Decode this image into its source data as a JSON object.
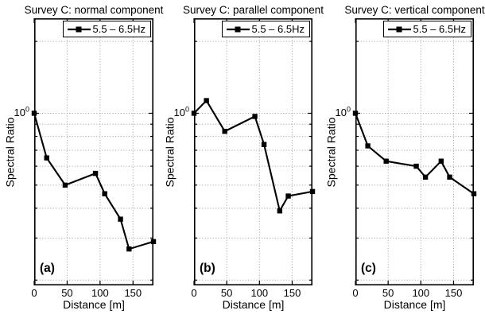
{
  "figure": {
    "background": "#ffffff",
    "line_color": "#000000",
    "grid_color": "#9a9a9a",
    "marker": "filled-square"
  },
  "chart_data": [
    {
      "type": "line",
      "title": "Survey C: normal component",
      "panel_letter": "(a)",
      "xlabel": "Distance [m]",
      "ylabel": "Spectral Ratio",
      "legend": {
        "label": "5.5 – 6.5Hz",
        "marker": "filled-square-on-line",
        "position": "top-right"
      },
      "series": [
        {
          "name": "5.5 – 6.5Hz",
          "x": [
            0,
            19,
            47,
            93,
            107,
            131,
            144,
            181
          ],
          "y": [
            1.0,
            0.65,
            0.5,
            0.56,
            0.46,
            0.36,
            0.27,
            0.29
          ]
        }
      ],
      "xlim": [
        0,
        181
      ],
      "ylim": [
        0.19,
        2.5
      ],
      "log_y": true,
      "xtick_positions": [
        0,
        50,
        100,
        150
      ],
      "xtick_labels": [
        "0",
        "50",
        "100",
        "150"
      ],
      "ytick": {
        "base": "10",
        "exp": "0",
        "value": 1
      },
      "ygrid_values": [
        2,
        1,
        0.9,
        0.8,
        0.7,
        0.6,
        0.5,
        0.4,
        0.3,
        0.2
      ],
      "xgrid_values": [
        50,
        100,
        150
      ],
      "grid": true
    },
    {
      "type": "line",
      "title": "Survey C: parallel component",
      "panel_letter": "(b)",
      "xlabel": "Distance [m]",
      "ylabel": "Spectral Ratio",
      "legend": {
        "label": "5.5 – 6.5Hz",
        "marker": "filled-square-on-line",
        "position": "top-right"
      },
      "series": [
        {
          "name": "5.5 – 6.5Hz",
          "x": [
            0,
            19,
            47,
            93,
            107,
            131,
            144,
            181
          ],
          "y": [
            1.0,
            1.13,
            0.84,
            0.97,
            0.74,
            0.39,
            0.45,
            0.47
          ]
        }
      ],
      "xlim": [
        0,
        181
      ],
      "ylim": [
        0.19,
        2.5
      ],
      "log_y": true,
      "xtick_positions": [
        0,
        50,
        100,
        150
      ],
      "xtick_labels": [
        "0",
        "50",
        "100",
        "150"
      ],
      "ytick": {
        "base": "10",
        "exp": "0",
        "value": 1
      },
      "ygrid_values": [
        2,
        1,
        0.9,
        0.8,
        0.7,
        0.6,
        0.5,
        0.4,
        0.3,
        0.2
      ],
      "xgrid_values": [
        50,
        100,
        150
      ],
      "grid": true
    },
    {
      "type": "line",
      "title": "Survey C: vertical component",
      "panel_letter": "(c)",
      "xlabel": "Distance [m]",
      "ylabel": "Spectral Ratio",
      "legend": {
        "label": "5.5 – 6.5Hz",
        "marker": "filled-square-on-line",
        "position": "top-right"
      },
      "series": [
        {
          "name": "5.5 – 6.5Hz",
          "x": [
            0,
            19,
            47,
            93,
            107,
            131,
            144,
            181
          ],
          "y": [
            1.0,
            0.73,
            0.63,
            0.6,
            0.54,
            0.63,
            0.54,
            0.46
          ]
        }
      ],
      "xlim": [
        0,
        181
      ],
      "ylim": [
        0.19,
        2.5
      ],
      "log_y": true,
      "xtick_positions": [
        0,
        50,
        100,
        150
      ],
      "xtick_labels": [
        "0",
        "50",
        "100",
        "150"
      ],
      "ytick": {
        "base": "10",
        "exp": "0",
        "value": 1
      },
      "ygrid_values": [
        2,
        1,
        0.9,
        0.8,
        0.7,
        0.6,
        0.5,
        0.4,
        0.3,
        0.2
      ],
      "xgrid_values": [
        50,
        100,
        150
      ],
      "grid": true
    }
  ]
}
